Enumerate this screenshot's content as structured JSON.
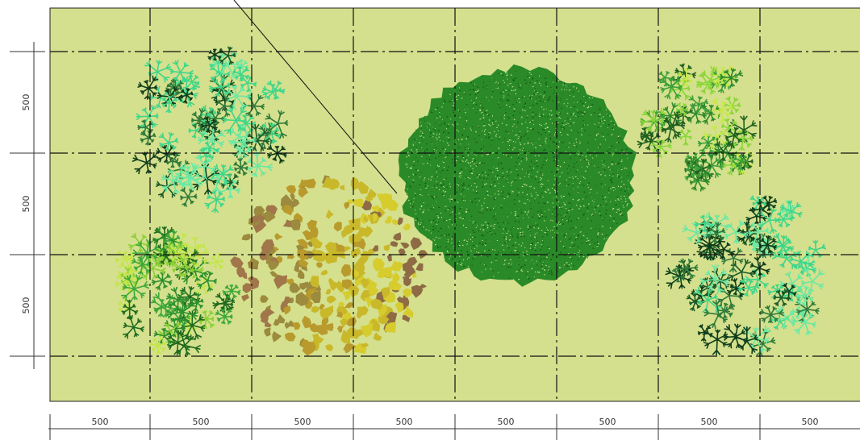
{
  "dimensions": {
    "horizontal": [
      "500",
      "500",
      "500",
      "500",
      "500",
      "500",
      "500",
      "500"
    ],
    "vertical": [
      "500",
      "500",
      "500"
    ]
  },
  "colors": {
    "ground": "#d4e08d",
    "grid_line": "#111111",
    "dim_line": "#333333"
  },
  "plants": [
    {
      "name": "dark-star-shrub-top-left",
      "style": "star",
      "palette": [
        "#0f3d1a",
        "#1d5a28",
        "#2f7a3a",
        "#3fd68a",
        "#6ae8a4"
      ]
    },
    {
      "name": "light-green-shrub-bottom-left",
      "style": "star",
      "palette": [
        "#1f6a1f",
        "#3da83a",
        "#8ccf35",
        "#c4e54a",
        "#2c8f2c"
      ]
    },
    {
      "name": "ochre-shrub-center",
      "style": "blob",
      "palette": [
        "#a0764a",
        "#9c8a3e",
        "#b99a2c",
        "#c9b82a",
        "#d6cc2e",
        "#8f6b45"
      ]
    },
    {
      "name": "large-dark-green-tree",
      "style": "dense",
      "palette": [
        "#1a6b1a",
        "#2a8a28",
        "#3c9a2c",
        "#155c15",
        "#4fae38"
      ]
    },
    {
      "name": "light-green-shrub-top-right",
      "style": "star",
      "palette": [
        "#1f5f1f",
        "#3da03a",
        "#8bd63a",
        "#c7e84a",
        "#2d8a2d"
      ]
    },
    {
      "name": "dark-star-shrub-bottom-right",
      "style": "star",
      "palette": [
        "#0f3d1a",
        "#1d5a28",
        "#2f7a3a",
        "#3fd68a",
        "#6ae8a4"
      ]
    }
  ]
}
